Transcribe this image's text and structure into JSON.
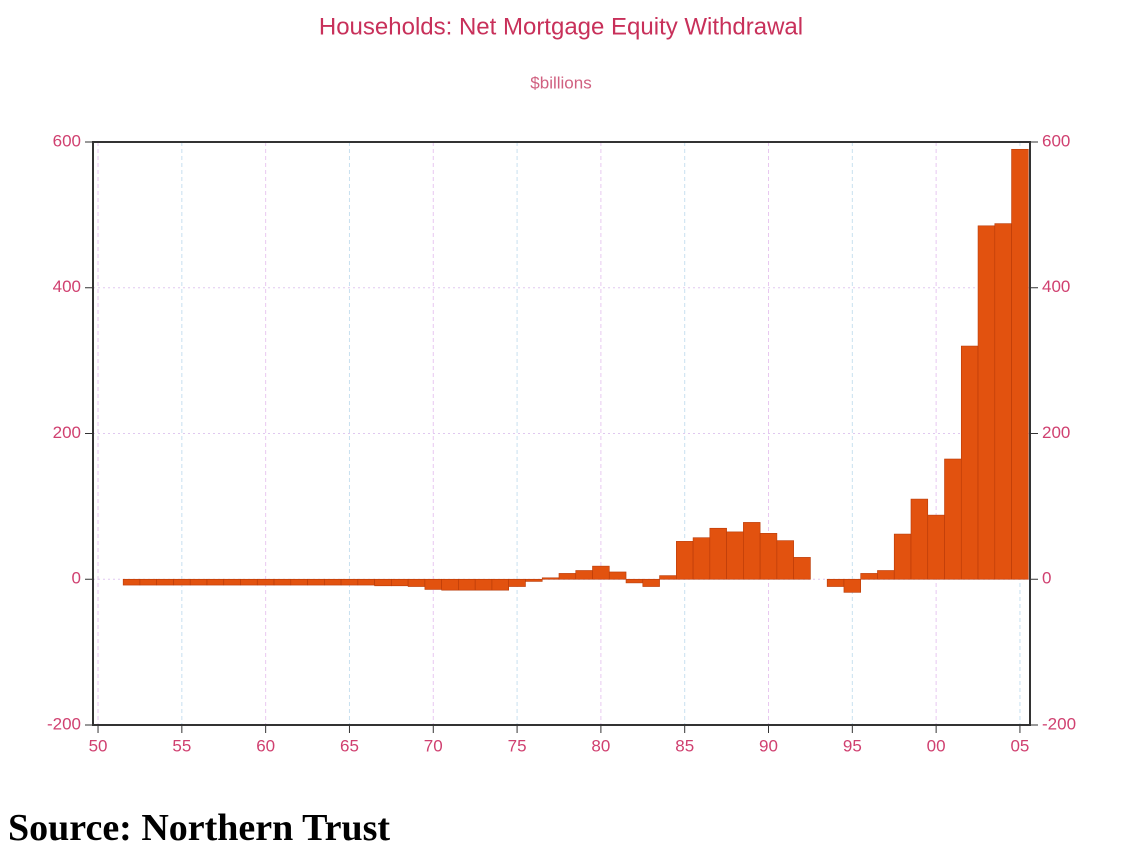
{
  "chart_data": {
    "type": "bar",
    "title": "Households: Net Mortgage Equity Withdrawal",
    "subtitle": "$billions",
    "source": "Source: Northern Trust",
    "color": "#e2520f",
    "x": [
      1952,
      1953,
      1954,
      1955,
      1956,
      1957,
      1958,
      1959,
      1960,
      1961,
      1962,
      1963,
      1964,
      1965,
      1966,
      1967,
      1968,
      1969,
      1970,
      1971,
      1972,
      1973,
      1974,
      1975,
      1976,
      1977,
      1978,
      1979,
      1980,
      1981,
      1982,
      1983,
      1984,
      1985,
      1986,
      1987,
      1988,
      1989,
      1990,
      1991,
      1992,
      1993,
      1994,
      1995,
      1996,
      1997,
      1998,
      1999,
      2000,
      2001,
      2002,
      2003,
      2004,
      2005
    ],
    "values": [
      -8,
      -8,
      -8,
      -8,
      -8,
      -8,
      -8,
      -8,
      -8,
      -8,
      -8,
      -8,
      -8,
      -8,
      -8,
      -9,
      -9,
      -10,
      -14,
      -15,
      -15,
      -15,
      -15,
      -10,
      -3,
      2,
      8,
      12,
      18,
      10,
      -5,
      -10,
      5,
      52,
      57,
      70,
      65,
      78,
      63,
      53,
      30,
      0,
      -10,
      -18,
      8,
      12,
      62,
      110,
      88,
      165,
      320,
      485,
      488,
      590
    ],
    "xlim": [
      1949.7,
      2005.6
    ],
    "xticks": [
      {
        "value": 1950,
        "label": "50"
      },
      {
        "value": 1955,
        "label": "55"
      },
      {
        "value": 1960,
        "label": "60"
      },
      {
        "value": 1965,
        "label": "65"
      },
      {
        "value": 1970,
        "label": "70"
      },
      {
        "value": 1975,
        "label": "75"
      },
      {
        "value": 1980,
        "label": "80"
      },
      {
        "value": 1985,
        "label": "85"
      },
      {
        "value": 1990,
        "label": "90"
      },
      {
        "value": 1995,
        "label": "95"
      },
      {
        "value": 2000,
        "label": "00"
      },
      {
        "value": 2005,
        "label": "05"
      }
    ],
    "ylim": [
      -200,
      600
    ],
    "yticks": [
      -200,
      0,
      200,
      400,
      600
    ],
    "y2lim": [
      -200,
      600
    ],
    "y2ticks": [
      -200,
      0,
      200,
      400,
      600
    ],
    "grid": true
  }
}
